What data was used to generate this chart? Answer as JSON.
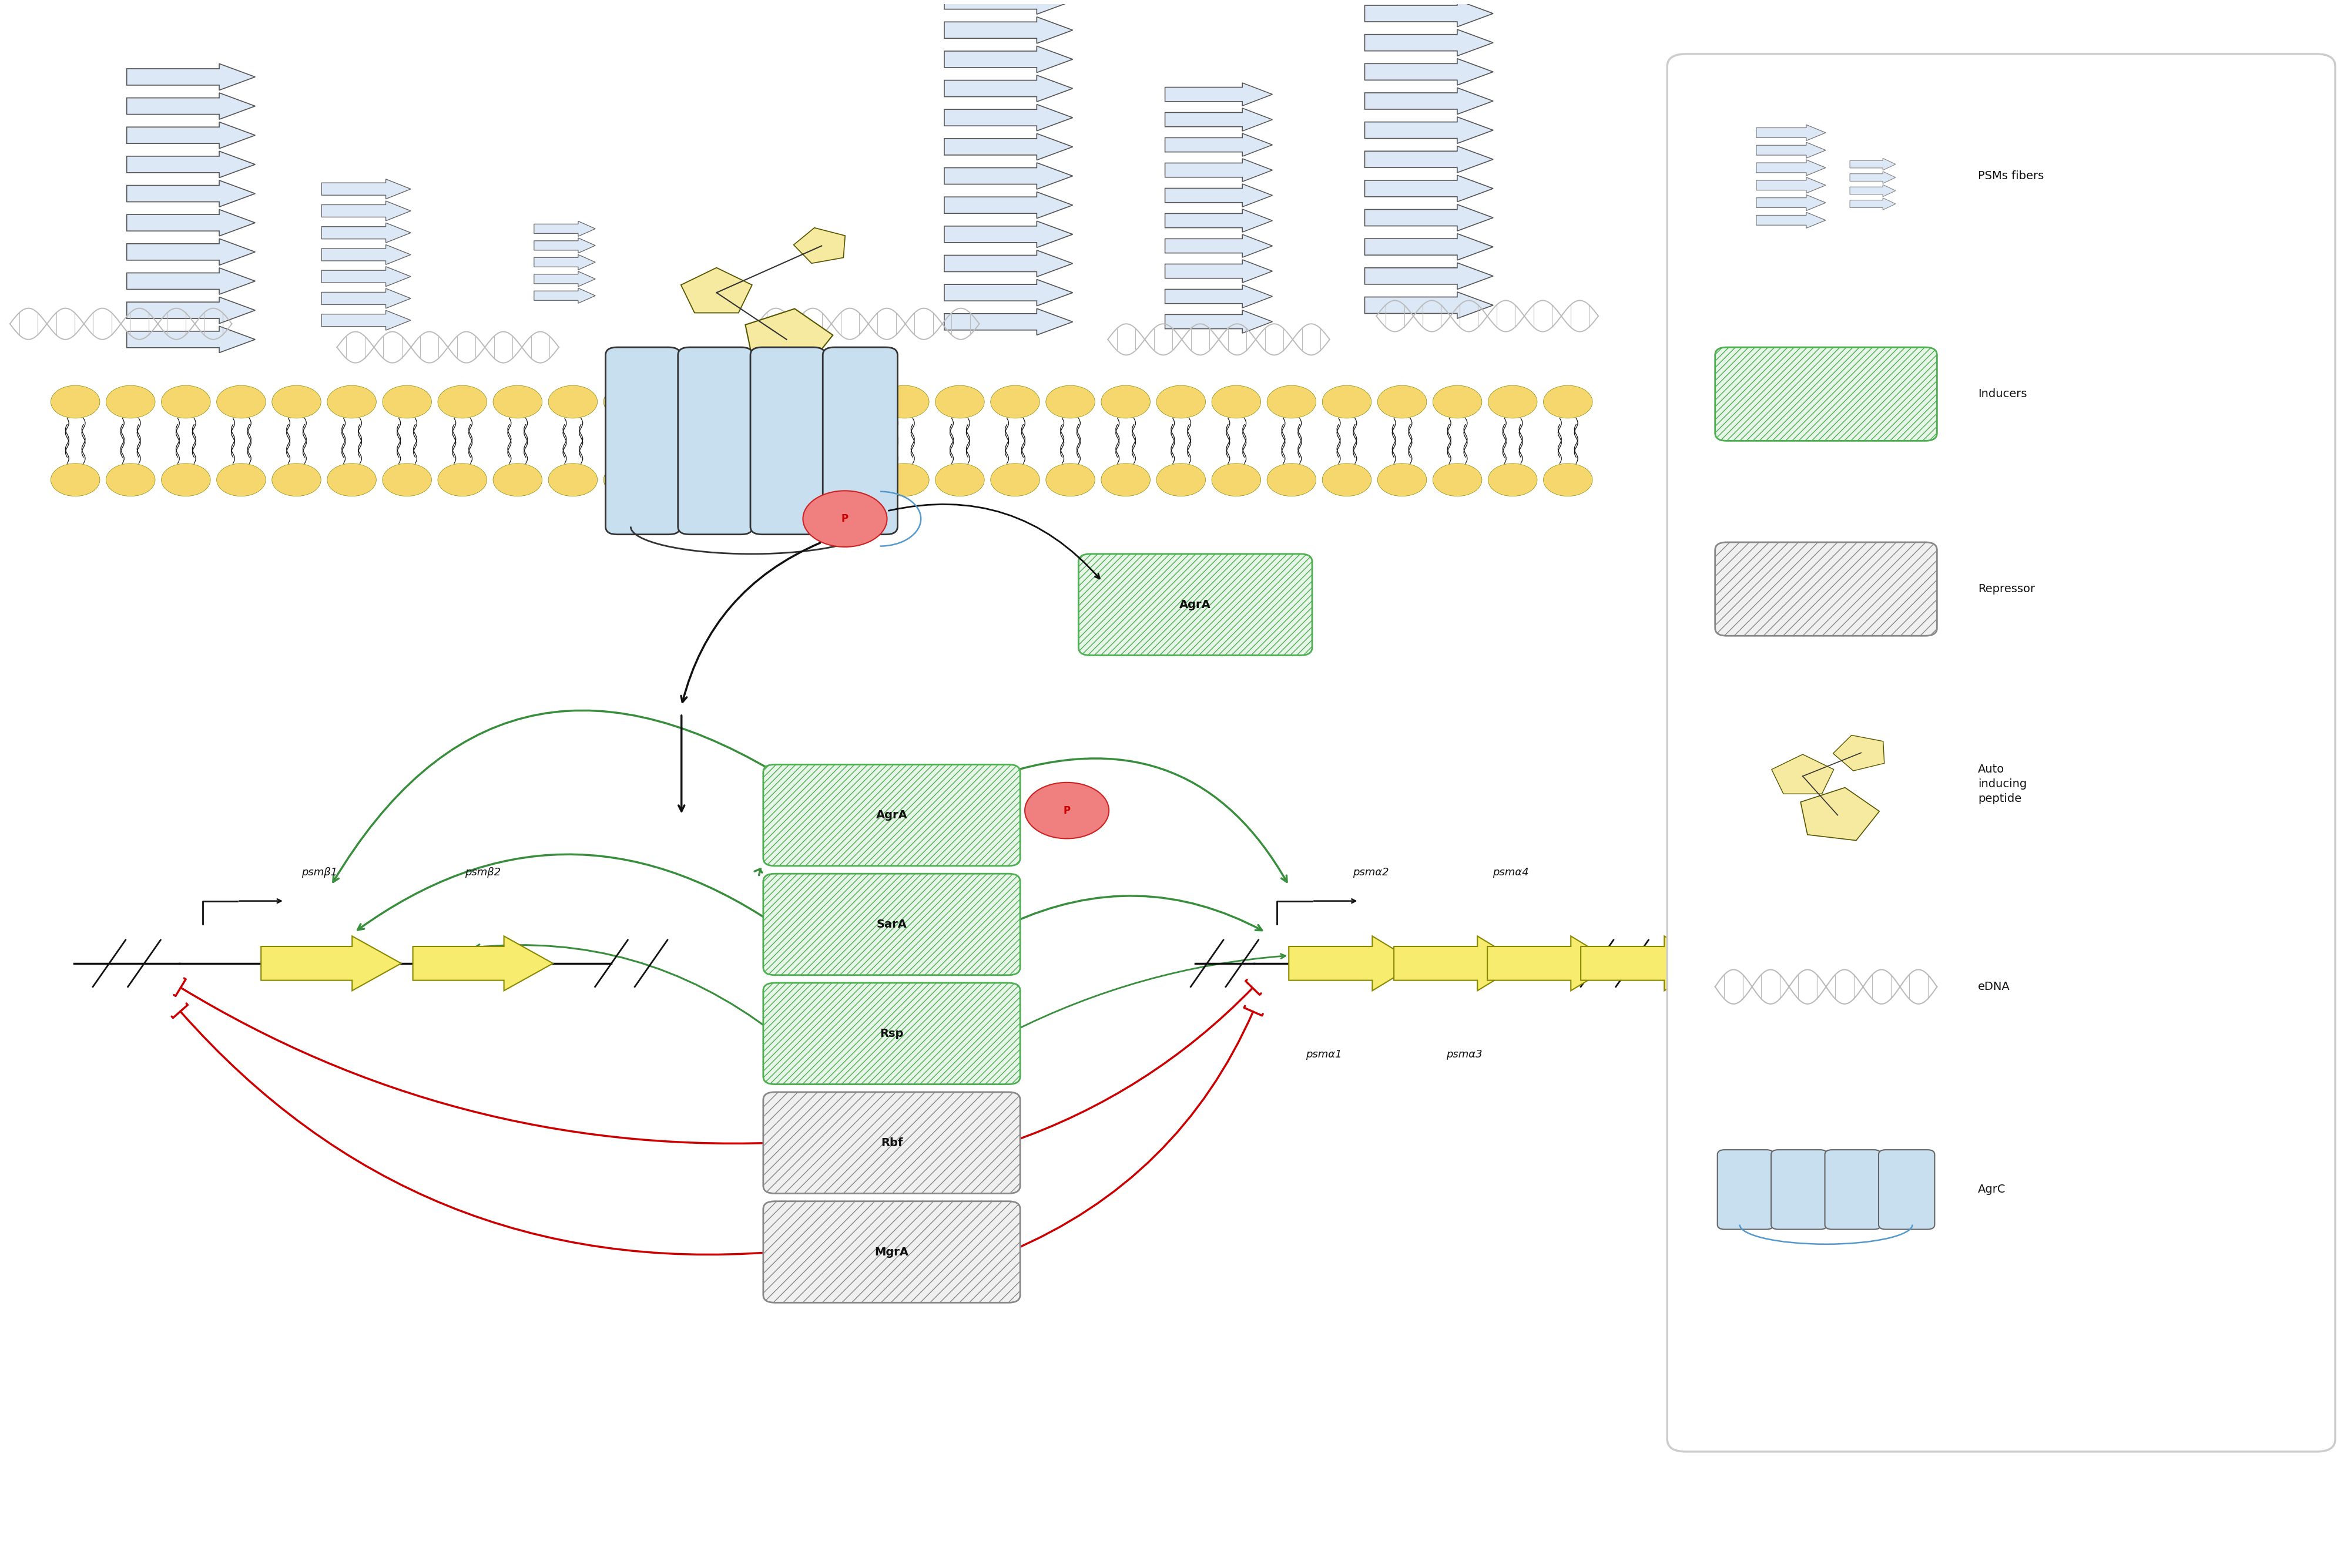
{
  "fig_width": 39.89,
  "fig_height": 26.69,
  "bg_color": "#ffffff",
  "membrane_top_color": "#F5D76E",
  "membrane_tail_color": "#111111",
  "channel_color": "#c8dff0",
  "channel_outline": "#333333",
  "psm_fill": "#dce8f5",
  "psm_outline": "#555555",
  "inducer_green_edge": "#4CAF50",
  "inducer_fill": "#e8f5e9",
  "repressor_fill": "#f0f0f0",
  "repressor_edge": "#888888",
  "arrow_green": "#388E3C",
  "arrow_red": "#cc0000",
  "gene_fill": "#F7EC6E",
  "gene_edge": "#888800",
  "peptide_fill": "#F5EAA0",
  "peptide_edge": "#555500",
  "dna_color": "#bbbbbb",
  "p_fill": "#F08080",
  "p_edge": "#cc2222",
  "labels": {
    "AgrA_box": "AgrA",
    "SarA_box": "SarA",
    "Rsp_box": "Rsp",
    "Rbf_box": "Rbf",
    "MgrA_box": "MgrA",
    "AgrA_float": "AgrA",
    "psmbeta1": "psmβ1",
    "psmbeta2": "psmβ2",
    "psmalpha1": "psmα1",
    "psmalpha2": "psmα2",
    "psmalpha3": "psmα3",
    "psmalpha4": "psmα4",
    "leg_psm": "PSMs fibers",
    "leg_ind": "Inducers",
    "leg_rep": "Repressor",
    "leg_aip": "Auto\ninducing\npeptide",
    "leg_edna": "eDNA",
    "leg_agrc": "AgrC",
    "P": "P"
  }
}
